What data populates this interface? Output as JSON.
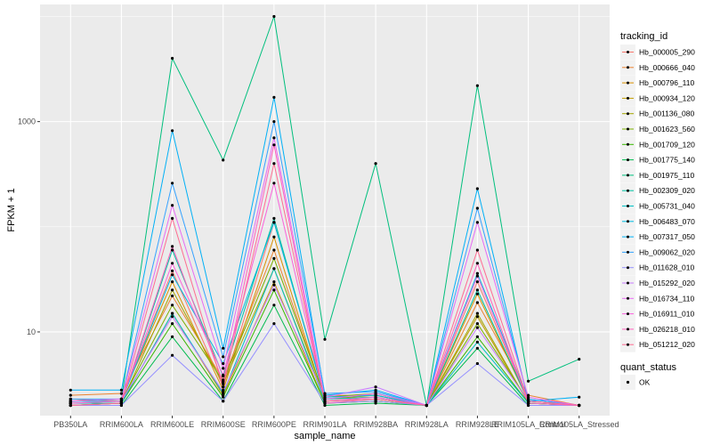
{
  "chart_data": {
    "type": "line",
    "xlabel": "sample_name",
    "ylabel": "FPKM + 1",
    "y_scale": "log10",
    "ylim": [
      1.6,
      13000
    ],
    "y_ticks": [
      10,
      1000
    ],
    "y_tick_labels": [
      "10",
      "1000"
    ],
    "grid": true,
    "legend_position": "right",
    "categories": [
      "PB350LA",
      "RRIM600LA",
      "RRIM600LE",
      "RRIM600SE",
      "RRIM600PE",
      "RRIM901LA",
      "RRIM928BA",
      "RRIM928LA",
      "RRIM928LE",
      "RRIM105LA_Control",
      "RRIM105LA_Stressed"
    ],
    "color_legend_title": "tracking_id",
    "shape_legend_title": "quant_status",
    "shape_legend_items": [
      "OK"
    ],
    "series": [
      {
        "name": "Hb_000005_290",
        "color": "#F8766D",
        "values": [
          2.3,
          2.2,
          38,
          3.0,
          110,
          2.5,
          2.5,
          2.0,
          30,
          2.2,
          2.0
        ]
      },
      {
        "name": "Hb_000666_040",
        "color": "#EA8331",
        "values": [
          2.5,
          2.6,
          22,
          3.5,
          60,
          2.3,
          2.4,
          2.0,
          19,
          2.5,
          2.0
        ]
      },
      {
        "name": "Hb_000796_110",
        "color": "#D89000",
        "values": [
          2.2,
          2.3,
          30,
          2.8,
          80,
          2.2,
          2.3,
          2.0,
          23,
          2.2,
          2.0
        ]
      },
      {
        "name": "Hb_000934_120",
        "color": "#C09B00",
        "values": [
          2.1,
          2.1,
          15,
          2.5,
          30,
          2.1,
          2.2,
          2.0,
          14,
          2.1,
          2.0
        ]
      },
      {
        "name": "Hb_001136_080",
        "color": "#A3A500",
        "values": [
          2.0,
          2.1,
          25,
          3.2,
          40,
          2.3,
          2.5,
          2.0,
          15,
          2.1,
          2.0
        ]
      },
      {
        "name": "Hb_001623_560",
        "color": "#7CAE00",
        "values": [
          2.1,
          2.2,
          18,
          3.4,
          50,
          2.4,
          2.6,
          2.0,
          12,
          2.2,
          2.0
        ]
      },
      {
        "name": "Hb_001709_120",
        "color": "#39B600",
        "values": [
          2.0,
          2.1,
          12,
          2.4,
          25,
          2.1,
          2.2,
          2.0,
          9,
          2.1,
          2.0
        ]
      },
      {
        "name": "Hb_001775_140",
        "color": "#00BB4E",
        "values": [
          2.0,
          2.0,
          9,
          2.2,
          18,
          2.0,
          2.1,
          2.0,
          7,
          2.0,
          2.0
        ]
      },
      {
        "name": "Hb_001975_110",
        "color": "#00BF7D",
        "values": [
          2.2,
          2.3,
          4000,
          430,
          10000,
          8.5,
          400,
          2.0,
          2200,
          3.4,
          5.5
        ]
      },
      {
        "name": "Hb_002309_020",
        "color": "#00C1A3",
        "values": [
          2.1,
          2.1,
          60,
          3.8,
          120,
          2.3,
          2.4,
          2.0,
          25,
          2.2,
          2.0
        ]
      },
      {
        "name": "Hb_005731_040",
        "color": "#00BFC4",
        "values": [
          2.0,
          2.1,
          15,
          2.6,
          40,
          2.2,
          2.3,
          2.0,
          8,
          2.1,
          2.0
        ]
      },
      {
        "name": "Hb_006483_070",
        "color": "#00BAE0",
        "values": [
          2.2,
          2.2,
          35,
          5.0,
          110,
          2.4,
          2.5,
          2.0,
          36,
          2.3,
          2.0
        ]
      },
      {
        "name": "Hb_007317_050",
        "color": "#00B0F6",
        "values": [
          2.8,
          2.8,
          820,
          7.0,
          1700,
          2.5,
          2.8,
          2.0,
          230,
          2.2,
          2.4
        ]
      },
      {
        "name": "Hb_009062_020",
        "color": "#35A2FF",
        "values": [
          2.3,
          2.3,
          260,
          5.8,
          1000,
          2.6,
          2.7,
          2.0,
          150,
          2.3,
          2.0
        ]
      },
      {
        "name": "Hb_011628_010",
        "color": "#9590FF",
        "values": [
          2.0,
          2.0,
          6,
          2.2,
          12,
          2.1,
          2.2,
          2.0,
          5,
          2.0,
          2.0
        ]
      },
      {
        "name": "Hb_015292_020",
        "color": "#C77CFF",
        "values": [
          2.1,
          2.2,
          14,
          2.7,
          28,
          2.4,
          3.0,
          2.0,
          11,
          2.2,
          2.0
        ]
      },
      {
        "name": "Hb_016734_110",
        "color": "#E76BF3",
        "values": [
          2.2,
          2.3,
          160,
          4.5,
          700,
          2.3,
          2.6,
          2.0,
          110,
          2.4,
          2.0
        ]
      },
      {
        "name": "Hb_016911_010",
        "color": "#FA62DB",
        "values": [
          2.1,
          2.2,
          45,
          3.9,
          260,
          2.2,
          2.4,
          2.0,
          34,
          2.2,
          2.0
        ]
      },
      {
        "name": "Hb_026218_010",
        "color": "#FF62BC",
        "values": [
          2.0,
          2.1,
          65,
          3.3,
          600,
          2.1,
          2.3,
          2.0,
          45,
          2.1,
          2.0
        ]
      },
      {
        "name": "Hb_051212_020",
        "color": "#FF6C91",
        "values": [
          2.0,
          2.1,
          120,
          3.0,
          400,
          2.2,
          2.3,
          2.0,
          60,
          2.2,
          2.0
        ]
      }
    ]
  }
}
